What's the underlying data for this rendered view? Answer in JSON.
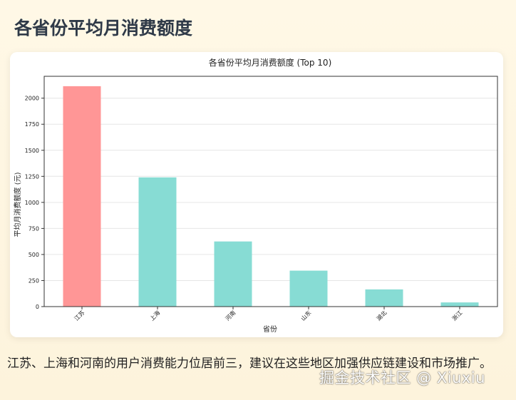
{
  "page": {
    "title": "各省份平均月消费额度",
    "summary": "江苏、上海和河南的用户消费能力位居前三，建议在这些地区加强供应链建设和市场推广。",
    "watermark": "掘金技术社区 @ Xiuxiu"
  },
  "colors": {
    "highlight_bar": "#ff9696",
    "normal_bar": "#87dcd4",
    "title_text": "#2f3a48"
  },
  "chart_data": {
    "type": "bar",
    "title": "各省份平均月消费额度 (Top 10)",
    "xlabel": "省份",
    "ylabel": "平均月消费额度 (元)",
    "categories": [
      "江苏",
      "上海",
      "河南",
      "山东",
      "湖北",
      "浙江"
    ],
    "values": [
      2115,
      1240,
      625,
      345,
      165,
      40
    ],
    "highlight_index": 0,
    "ylim": [
      0,
      2210
    ],
    "yticks": [
      0,
      250,
      500,
      750,
      1000,
      1250,
      1500,
      1750,
      2000
    ],
    "grid": "horizontal",
    "x_tick_rotation": 45
  }
}
